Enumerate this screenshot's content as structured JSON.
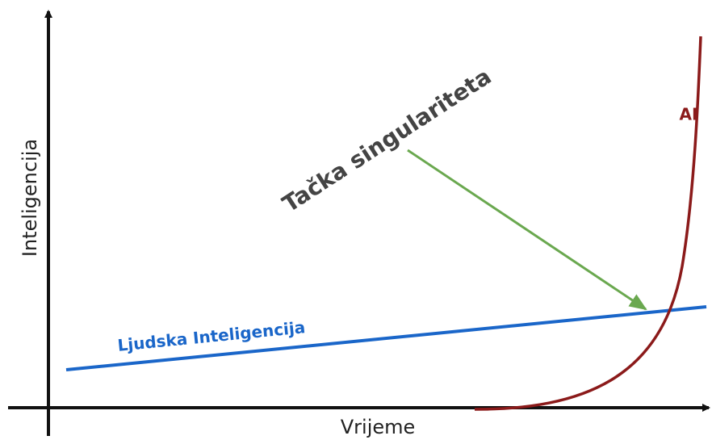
{
  "axes": {
    "y_label": "Inteligencija",
    "x_label": "Vrijeme"
  },
  "curves": {
    "human": "Ljudska Inteligencija",
    "ai": "AI"
  },
  "annotation": "Tačka singulariteta"
}
